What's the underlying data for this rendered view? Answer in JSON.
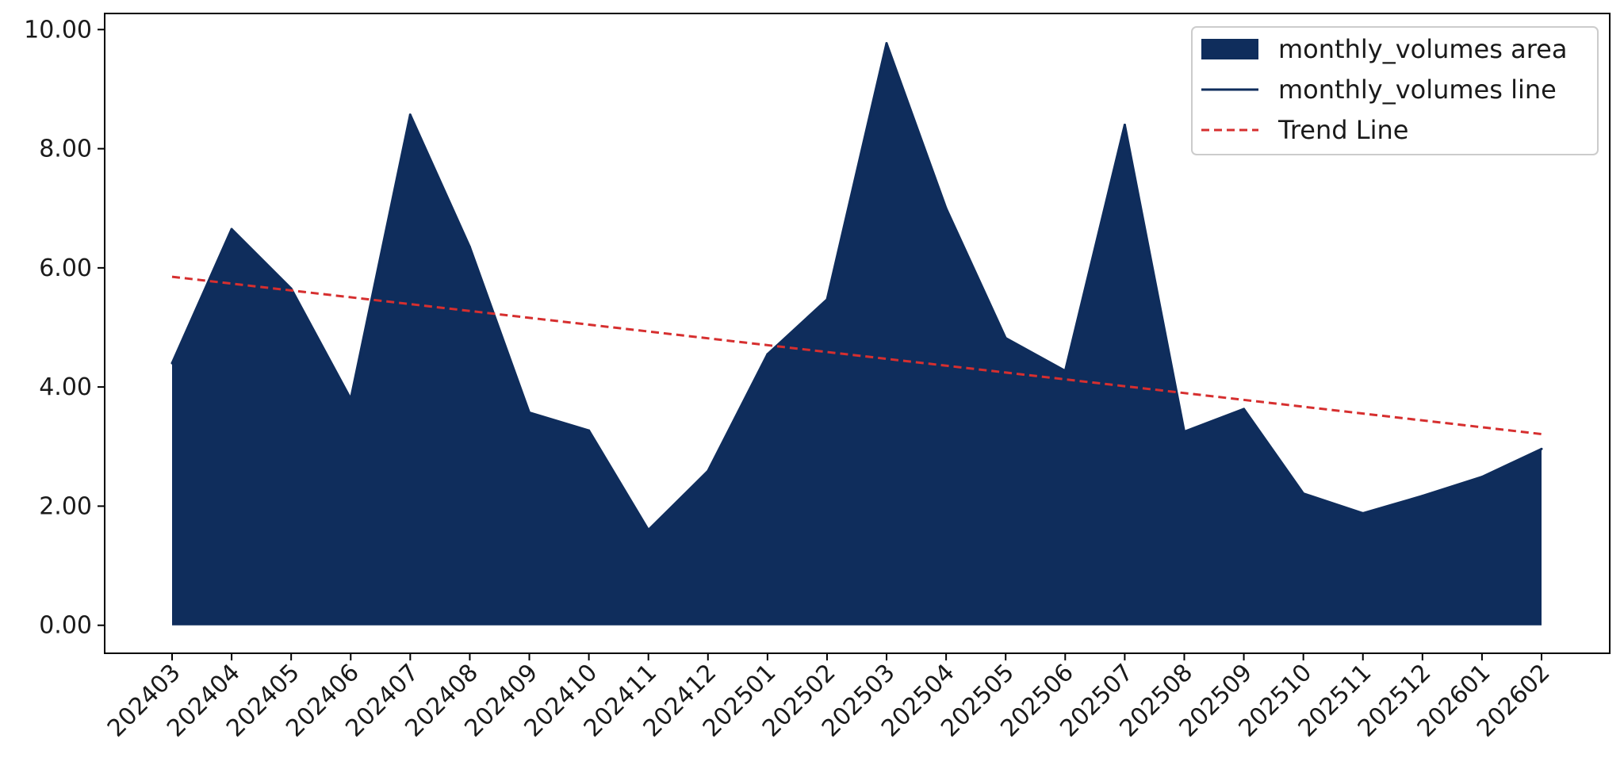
{
  "chart_data": {
    "type": "area",
    "title": "",
    "xlabel": "",
    "ylabel": "",
    "categories": [
      "202403",
      "202404",
      "202405",
      "202406",
      "202407",
      "202408",
      "202409",
      "202410",
      "202411",
      "202412",
      "202501",
      "202502",
      "202503",
      "202504",
      "202505",
      "202506",
      "202507",
      "202508",
      "202509",
      "202510",
      "202511",
      "202512",
      "202601",
      "202602"
    ],
    "series": [
      {
        "name": "monthly_volumes",
        "values": [
          4.4,
          6.65,
          5.65,
          3.8,
          8.57,
          6.35,
          3.57,
          3.27,
          1.6,
          2.59,
          4.55,
          5.47,
          9.77,
          7.0,
          4.82,
          4.27,
          8.4,
          3.25,
          3.63,
          2.21,
          1.88,
          2.17,
          2.49,
          2.96
        ],
        "color": "#0f2d5c"
      }
    ],
    "trend": {
      "name": "Trend Line",
      "start": 5.85,
      "end": 3.21,
      "color": "#d62f2f"
    },
    "legend": {
      "position": "top-right",
      "entries": [
        "monthly_volumes area",
        "monthly_volumes line",
        "Trend Line"
      ]
    },
    "ylim": [
      -0.47,
      10.27
    ],
    "yticks": [
      "0.00",
      "2.00",
      "4.00",
      "6.00",
      "8.00",
      "10.00"
    ],
    "grid": false
  }
}
